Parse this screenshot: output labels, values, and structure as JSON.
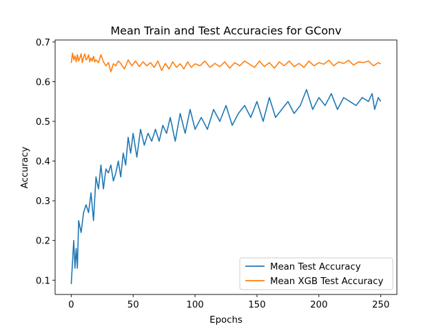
{
  "chart_data": {
    "type": "line",
    "title": "Mean Train and Test Accuracies for GConv",
    "xlabel": "Epochs",
    "ylabel": "Accuracy",
    "xlim": [
      -13,
      263
    ],
    "ylim": [
      0.064,
      0.705
    ],
    "xticks": [
      0,
      50,
      100,
      150,
      200,
      250
    ],
    "yticks": [
      0.1,
      0.2,
      0.3,
      0.4,
      0.5,
      0.6,
      0.7
    ],
    "ytick_labels": [
      "0.1",
      "0.2",
      "0.3",
      "0.4",
      "0.5",
      "0.6",
      "0.7"
    ],
    "grid": false,
    "legend_position": "lower-right",
    "series": [
      {
        "name": "Mean Test Accuracy",
        "color": "#1f77b4",
        "x": [
          0,
          2,
          3,
          4,
          5,
          6,
          8,
          10,
          12,
          14,
          16,
          18,
          20,
          22,
          24,
          26,
          28,
          30,
          32,
          34,
          36,
          38,
          40,
          42,
          44,
          46,
          48,
          50,
          53,
          56,
          59,
          62,
          65,
          68,
          71,
          74,
          77,
          80,
          84,
          88,
          92,
          96,
          100,
          105,
          110,
          115,
          120,
          125,
          130,
          135,
          140,
          145,
          150,
          155,
          160,
          165,
          170,
          175,
          180,
          185,
          190,
          195,
          200,
          205,
          210,
          215,
          220,
          225,
          230,
          235,
          240,
          243,
          245,
          248,
          250
        ],
        "y": [
          0.09,
          0.2,
          0.13,
          0.18,
          0.13,
          0.25,
          0.22,
          0.27,
          0.29,
          0.27,
          0.32,
          0.25,
          0.36,
          0.33,
          0.39,
          0.33,
          0.38,
          0.37,
          0.39,
          0.35,
          0.37,
          0.4,
          0.36,
          0.42,
          0.39,
          0.46,
          0.42,
          0.47,
          0.41,
          0.48,
          0.44,
          0.47,
          0.45,
          0.48,
          0.45,
          0.49,
          0.47,
          0.51,
          0.45,
          0.52,
          0.47,
          0.53,
          0.48,
          0.51,
          0.48,
          0.53,
          0.5,
          0.54,
          0.49,
          0.52,
          0.54,
          0.51,
          0.55,
          0.5,
          0.56,
          0.51,
          0.53,
          0.55,
          0.52,
          0.54,
          0.58,
          0.53,
          0.56,
          0.54,
          0.57,
          0.53,
          0.56,
          0.55,
          0.54,
          0.56,
          0.55,
          0.57,
          0.53,
          0.56,
          0.55
        ]
      },
      {
        "name": "Mean XGB Test Accuracy",
        "color": "#ff7f0e",
        "x": [
          0,
          1,
          2,
          3,
          4,
          5,
          6,
          7,
          8,
          9,
          10,
          11,
          12,
          13,
          14,
          15,
          16,
          17,
          18,
          19,
          20,
          22,
          24,
          26,
          28,
          30,
          32,
          34,
          36,
          38,
          40,
          43,
          46,
          49,
          52,
          55,
          58,
          61,
          64,
          67,
          70,
          73,
          76,
          79,
          82,
          85,
          88,
          91,
          94,
          97,
          100,
          104,
          108,
          112,
          116,
          120,
          124,
          128,
          132,
          136,
          140,
          144,
          148,
          152,
          156,
          160,
          164,
          168,
          172,
          176,
          180,
          184,
          188,
          192,
          196,
          200,
          204,
          208,
          212,
          216,
          220,
          224,
          228,
          232,
          236,
          240,
          244,
          248,
          250
        ],
        "y": [
          0.647,
          0.672,
          0.655,
          0.665,
          0.65,
          0.668,
          0.652,
          0.66,
          0.67,
          0.648,
          0.662,
          0.67,
          0.655,
          0.658,
          0.668,
          0.65,
          0.66,
          0.652,
          0.664,
          0.65,
          0.655,
          0.648,
          0.668,
          0.65,
          0.64,
          0.648,
          0.625,
          0.645,
          0.64,
          0.652,
          0.646,
          0.632,
          0.655,
          0.64,
          0.652,
          0.638,
          0.65,
          0.64,
          0.648,
          0.636,
          0.652,
          0.628,
          0.646,
          0.632,
          0.65,
          0.636,
          0.645,
          0.632,
          0.65,
          0.636,
          0.645,
          0.64,
          0.652,
          0.636,
          0.646,
          0.638,
          0.65,
          0.634,
          0.648,
          0.64,
          0.652,
          0.644,
          0.636,
          0.652,
          0.638,
          0.648,
          0.634,
          0.65,
          0.64,
          0.652,
          0.638,
          0.646,
          0.636,
          0.652,
          0.64,
          0.648,
          0.644,
          0.654,
          0.64,
          0.65,
          0.646,
          0.654,
          0.642,
          0.65,
          0.648,
          0.652,
          0.64,
          0.648,
          0.645
        ]
      }
    ]
  }
}
